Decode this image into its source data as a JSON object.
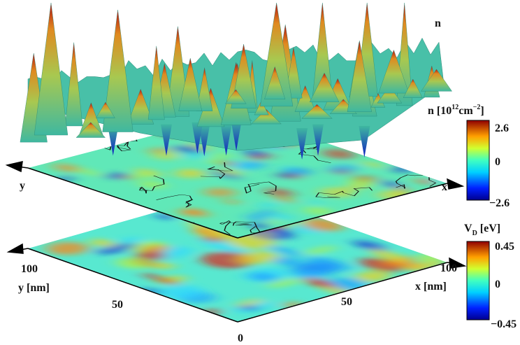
{
  "figure": {
    "surface_label": "n",
    "density_colorbar": {
      "label": "n [10",
      "label_sup": "12",
      "label_unit": "cm",
      "label_unit_sup": "−2",
      "label_end": "]",
      "ticks": [
        "2.6",
        "0",
        "−2.6"
      ]
    },
    "potential_colorbar": {
      "label": "V",
      "label_sub": "D",
      "label_end": " [eV]",
      "ticks": [
        "0.45",
        "0",
        "−0.45"
      ]
    },
    "middle_axes": {
      "y": "y",
      "x": "x"
    },
    "bottom_axes": {
      "y_label": "y [nm]",
      "x_label": "x [nm]",
      "y_ticks": [
        "100",
        "50"
      ],
      "origin": "0",
      "x_ticks": [
        "50",
        "100"
      ]
    }
  }
}
